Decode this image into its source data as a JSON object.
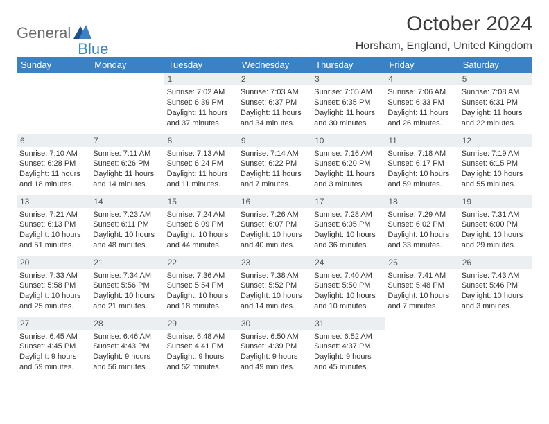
{
  "logo": {
    "part1": "General",
    "part2": "Blue"
  },
  "title": "October 2024",
  "location": "Horsham, England, United Kingdom",
  "colors": {
    "header_bg": "#3b82c4",
    "header_fg": "#ffffff",
    "daynum_bg": "#eceff2",
    "border": "#3b82c4"
  },
  "weekdays": [
    "Sunday",
    "Monday",
    "Tuesday",
    "Wednesday",
    "Thursday",
    "Friday",
    "Saturday"
  ],
  "weeks": [
    [
      null,
      null,
      {
        "d": "1",
        "sr": "7:02 AM",
        "ss": "6:39 PM",
        "dl": "11 hours and 37 minutes."
      },
      {
        "d": "2",
        "sr": "7:03 AM",
        "ss": "6:37 PM",
        "dl": "11 hours and 34 minutes."
      },
      {
        "d": "3",
        "sr": "7:05 AM",
        "ss": "6:35 PM",
        "dl": "11 hours and 30 minutes."
      },
      {
        "d": "4",
        "sr": "7:06 AM",
        "ss": "6:33 PM",
        "dl": "11 hours and 26 minutes."
      },
      {
        "d": "5",
        "sr": "7:08 AM",
        "ss": "6:31 PM",
        "dl": "11 hours and 22 minutes."
      }
    ],
    [
      {
        "d": "6",
        "sr": "7:10 AM",
        "ss": "6:28 PM",
        "dl": "11 hours and 18 minutes."
      },
      {
        "d": "7",
        "sr": "7:11 AM",
        "ss": "6:26 PM",
        "dl": "11 hours and 14 minutes."
      },
      {
        "d": "8",
        "sr": "7:13 AM",
        "ss": "6:24 PM",
        "dl": "11 hours and 11 minutes."
      },
      {
        "d": "9",
        "sr": "7:14 AM",
        "ss": "6:22 PM",
        "dl": "11 hours and 7 minutes."
      },
      {
        "d": "10",
        "sr": "7:16 AM",
        "ss": "6:20 PM",
        "dl": "11 hours and 3 minutes."
      },
      {
        "d": "11",
        "sr": "7:18 AM",
        "ss": "6:17 PM",
        "dl": "10 hours and 59 minutes."
      },
      {
        "d": "12",
        "sr": "7:19 AM",
        "ss": "6:15 PM",
        "dl": "10 hours and 55 minutes."
      }
    ],
    [
      {
        "d": "13",
        "sr": "7:21 AM",
        "ss": "6:13 PM",
        "dl": "10 hours and 51 minutes."
      },
      {
        "d": "14",
        "sr": "7:23 AM",
        "ss": "6:11 PM",
        "dl": "10 hours and 48 minutes."
      },
      {
        "d": "15",
        "sr": "7:24 AM",
        "ss": "6:09 PM",
        "dl": "10 hours and 44 minutes."
      },
      {
        "d": "16",
        "sr": "7:26 AM",
        "ss": "6:07 PM",
        "dl": "10 hours and 40 minutes."
      },
      {
        "d": "17",
        "sr": "7:28 AM",
        "ss": "6:05 PM",
        "dl": "10 hours and 36 minutes."
      },
      {
        "d": "18",
        "sr": "7:29 AM",
        "ss": "6:02 PM",
        "dl": "10 hours and 33 minutes."
      },
      {
        "d": "19",
        "sr": "7:31 AM",
        "ss": "6:00 PM",
        "dl": "10 hours and 29 minutes."
      }
    ],
    [
      {
        "d": "20",
        "sr": "7:33 AM",
        "ss": "5:58 PM",
        "dl": "10 hours and 25 minutes."
      },
      {
        "d": "21",
        "sr": "7:34 AM",
        "ss": "5:56 PM",
        "dl": "10 hours and 21 minutes."
      },
      {
        "d": "22",
        "sr": "7:36 AM",
        "ss": "5:54 PM",
        "dl": "10 hours and 18 minutes."
      },
      {
        "d": "23",
        "sr": "7:38 AM",
        "ss": "5:52 PM",
        "dl": "10 hours and 14 minutes."
      },
      {
        "d": "24",
        "sr": "7:40 AM",
        "ss": "5:50 PM",
        "dl": "10 hours and 10 minutes."
      },
      {
        "d": "25",
        "sr": "7:41 AM",
        "ss": "5:48 PM",
        "dl": "10 hours and 7 minutes."
      },
      {
        "d": "26",
        "sr": "7:43 AM",
        "ss": "5:46 PM",
        "dl": "10 hours and 3 minutes."
      }
    ],
    [
      {
        "d": "27",
        "sr": "6:45 AM",
        "ss": "4:45 PM",
        "dl": "9 hours and 59 minutes."
      },
      {
        "d": "28",
        "sr": "6:46 AM",
        "ss": "4:43 PM",
        "dl": "9 hours and 56 minutes."
      },
      {
        "d": "29",
        "sr": "6:48 AM",
        "ss": "4:41 PM",
        "dl": "9 hours and 52 minutes."
      },
      {
        "d": "30",
        "sr": "6:50 AM",
        "ss": "4:39 PM",
        "dl": "9 hours and 49 minutes."
      },
      {
        "d": "31",
        "sr": "6:52 AM",
        "ss": "4:37 PM",
        "dl": "9 hours and 45 minutes."
      },
      null,
      null
    ]
  ],
  "labels": {
    "sunrise": "Sunrise:",
    "sunset": "Sunset:",
    "daylight": "Daylight:"
  }
}
